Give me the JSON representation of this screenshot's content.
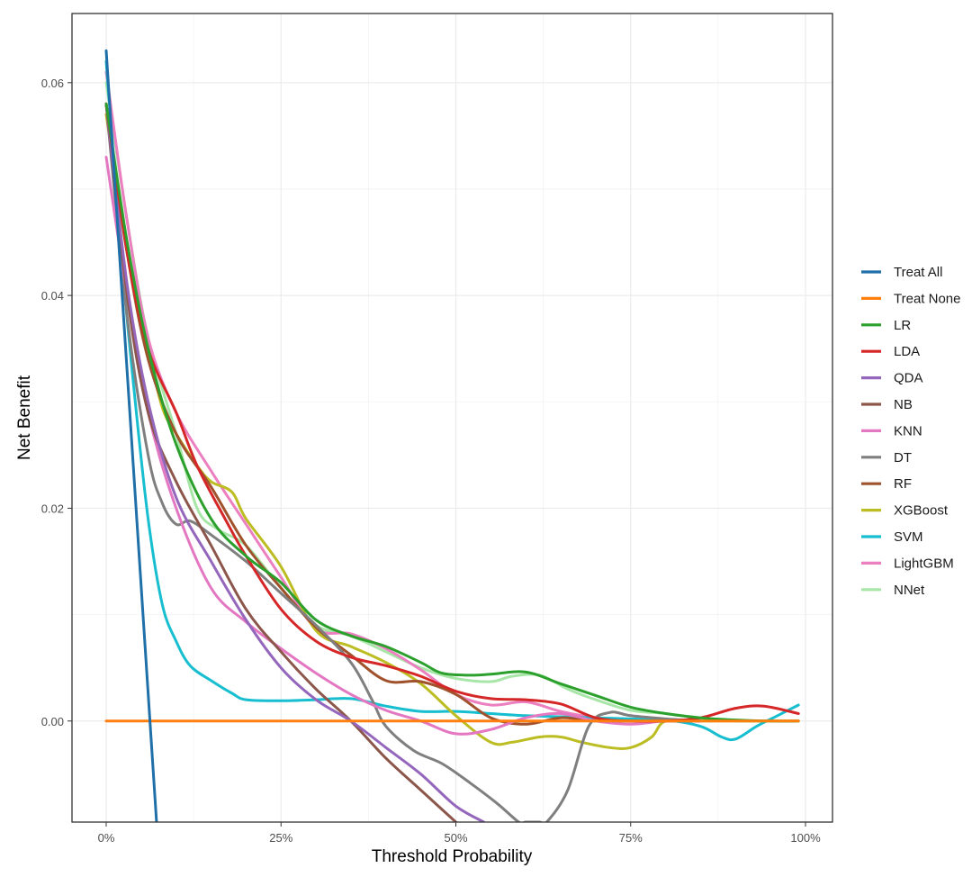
{
  "chart_data": {
    "type": "line",
    "title": "",
    "xlabel": "Threshold Probability",
    "ylabel": "Net Benefit",
    "xlim": [
      0,
      1
    ],
    "ylim": [
      -0.0095,
      0.0665
    ],
    "x_ticks": [
      0,
      0.25,
      0.5,
      0.75,
      1
    ],
    "x_tick_labels": [
      "0%",
      "25%",
      "50%",
      "75%",
      "100%"
    ],
    "y_ticks": [
      0,
      0.02,
      0.04,
      0.06
    ],
    "y_tick_labels": [
      "0.00",
      "0.02",
      "0.04",
      "0.06"
    ],
    "grid": true,
    "legend_position": "right",
    "series": [
      {
        "name": "Treat All",
        "color": "#1f6fa8",
        "x": [
          0,
          0.072
        ],
        "y": [
          0.063,
          -0.0095
        ]
      },
      {
        "name": "Treat None",
        "color": "#ff7f0e",
        "x": [
          0,
          0.99
        ],
        "y": [
          0,
          0
        ]
      },
      {
        "name": "LR",
        "color": "#2ca02c",
        "x": [
          0,
          0.03,
          0.06,
          0.1,
          0.15,
          0.2,
          0.25,
          0.3,
          0.35,
          0.4,
          0.45,
          0.48,
          0.52,
          0.55,
          0.6,
          0.65,
          0.7,
          0.75,
          0.8,
          0.85,
          0.9,
          0.95,
          0.99
        ],
        "y": [
          0.058,
          0.045,
          0.035,
          0.026,
          0.019,
          0.0155,
          0.013,
          0.0095,
          0.008,
          0.007,
          0.0055,
          0.0045,
          0.0043,
          0.0044,
          0.0046,
          0.0035,
          0.0024,
          0.0013,
          0.0007,
          0.0003,
          0.0001,
          0.0,
          0.0
        ]
      },
      {
        "name": "LDA",
        "color": "#d62728",
        "x": [
          0,
          0.03,
          0.06,
          0.1,
          0.13,
          0.17,
          0.2,
          0.25,
          0.3,
          0.35,
          0.4,
          0.45,
          0.5,
          0.55,
          0.6,
          0.65,
          0.7,
          0.75,
          0.8,
          0.85,
          0.9,
          0.94,
          0.99
        ],
        "y": [
          0.058,
          0.044,
          0.035,
          0.029,
          0.024,
          0.019,
          0.0155,
          0.0105,
          0.0075,
          0.006,
          0.0052,
          0.0042,
          0.0028,
          0.0021,
          0.002,
          0.0016,
          0.0003,
          0.0,
          0.0,
          0.0003,
          0.0012,
          0.0014,
          0.0007
        ]
      },
      {
        "name": "QDA",
        "color": "#9467bd",
        "x": [
          0,
          0.03,
          0.06,
          0.1,
          0.15,
          0.2,
          0.25,
          0.3,
          0.35,
          0.4,
          0.45,
          0.5,
          0.54
        ],
        "y": [
          0.058,
          0.041,
          0.03,
          0.021,
          0.015,
          0.0095,
          0.005,
          0.002,
          0.0,
          -0.0025,
          -0.005,
          -0.008,
          -0.0095
        ]
      },
      {
        "name": "NB",
        "color": "#8c564b",
        "x": [
          0,
          0.03,
          0.06,
          0.1,
          0.15,
          0.2,
          0.25,
          0.3,
          0.35,
          0.4,
          0.45,
          0.5
        ],
        "y": [
          0.058,
          0.04,
          0.029,
          0.0225,
          0.0165,
          0.0105,
          0.0065,
          0.003,
          0.0,
          -0.0035,
          -0.0065,
          -0.0095
        ]
      },
      {
        "name": "KNN",
        "color": "#e377c2",
        "x": [
          0,
          0.03,
          0.06,
          0.1,
          0.15,
          0.2,
          0.25,
          0.3,
          0.35,
          0.4,
          0.45,
          0.5,
          0.55,
          0.6,
          0.65,
          0.7,
          0.75,
          0.8,
          0.85
        ],
        "y": [
          0.053,
          0.04,
          0.029,
          0.02,
          0.0125,
          0.0093,
          0.0068,
          0.0045,
          0.0025,
          0.001,
          0.0,
          -0.0012,
          -0.0008,
          0.0003,
          0.0007,
          0.0,
          -0.0003,
          0.0,
          0.0
        ]
      },
      {
        "name": "DT",
        "color": "#7f7f7f",
        "x": [
          0,
          0.03,
          0.06,
          0.08,
          0.1,
          0.12,
          0.15,
          0.2,
          0.25,
          0.3,
          0.35,
          0.38,
          0.4,
          0.44,
          0.48,
          0.52,
          0.56,
          0.59,
          0.6,
          0.62,
          0.63,
          0.66,
          0.69,
          0.72,
          0.75,
          0.8,
          0.85
        ],
        "y": [
          0.058,
          0.038,
          0.025,
          0.0205,
          0.0185,
          0.0188,
          0.0175,
          0.015,
          0.012,
          0.009,
          0.0055,
          0.002,
          -0.0005,
          -0.0028,
          -0.004,
          -0.0058,
          -0.0078,
          -0.0095,
          -0.0095,
          -0.0095,
          -0.0095,
          -0.0065,
          -0.0005,
          0.0008,
          0.0005,
          0.0002,
          0.0
        ]
      },
      {
        "name": "RF",
        "color": "#a0522d",
        "x": [
          0,
          0.03,
          0.06,
          0.1,
          0.15,
          0.2,
          0.25,
          0.3,
          0.35,
          0.4,
          0.45,
          0.5,
          0.55,
          0.6,
          0.65,
          0.7,
          0.75,
          0.8,
          0.85
        ],
        "y": [
          0.058,
          0.044,
          0.034,
          0.027,
          0.022,
          0.0165,
          0.0125,
          0.0088,
          0.0062,
          0.0038,
          0.0037,
          0.0025,
          0.0003,
          -0.0003,
          0.0003,
          0.0,
          0.0,
          0.0,
          0.0
        ]
      },
      {
        "name": "XGBoost",
        "color": "#bcbd22",
        "x": [
          0,
          0.03,
          0.06,
          0.08,
          0.1,
          0.13,
          0.15,
          0.18,
          0.2,
          0.25,
          0.3,
          0.35,
          0.4,
          0.45,
          0.5,
          0.55,
          0.58,
          0.62,
          0.65,
          0.68,
          0.72,
          0.75,
          0.78,
          0.8,
          0.85,
          0.9,
          0.99
        ],
        "y": [
          0.057,
          0.044,
          0.035,
          0.0295,
          0.027,
          0.024,
          0.0225,
          0.0215,
          0.019,
          0.0145,
          0.0085,
          0.007,
          0.0055,
          0.0035,
          0.0005,
          -0.002,
          -0.002,
          -0.0015,
          -0.0015,
          -0.002,
          -0.0025,
          -0.0025,
          -0.0015,
          0.0,
          0.0,
          0.0,
          0.0
        ]
      },
      {
        "name": "SVM",
        "color": "#17becf",
        "x": [
          0,
          0.02,
          0.04,
          0.06,
          0.08,
          0.1,
          0.12,
          0.15,
          0.18,
          0.2,
          0.25,
          0.3,
          0.35,
          0.4,
          0.45,
          0.5,
          0.55,
          0.6,
          0.65,
          0.7,
          0.75,
          0.8,
          0.85,
          0.88,
          0.9,
          0.93,
          0.96,
          0.99
        ],
        "y": [
          0.062,
          0.045,
          0.031,
          0.019,
          0.011,
          0.0075,
          0.0052,
          0.0038,
          0.0026,
          0.002,
          0.0019,
          0.002,
          0.0021,
          0.0014,
          0.0009,
          0.0009,
          0.0007,
          0.0005,
          0.0004,
          0.0003,
          0.0002,
          0.0001,
          -0.0005,
          -0.0015,
          -0.0017,
          -0.0005,
          0.0005,
          0.0015
        ]
      },
      {
        "name": "LightGBM",
        "color": "#ec7fbf",
        "x": [
          0,
          0.03,
          0.06,
          0.1,
          0.15,
          0.2,
          0.25,
          0.3,
          0.35,
          0.4,
          0.45,
          0.5,
          0.55,
          0.6,
          0.65,
          0.7,
          0.75,
          0.8,
          0.85
        ],
        "y": [
          0.061,
          0.047,
          0.036,
          0.029,
          0.0235,
          0.0185,
          0.0135,
          0.0087,
          0.0082,
          0.0068,
          0.0048,
          0.0025,
          0.0015,
          0.0018,
          0.0009,
          0.0003,
          0.0,
          0.0,
          0.0
        ]
      },
      {
        "name": "NNet",
        "color": "#a8e6a8",
        "x": [
          0,
          0.03,
          0.06,
          0.1,
          0.13,
          0.16,
          0.2,
          0.25,
          0.3,
          0.35,
          0.4,
          0.45,
          0.5,
          0.55,
          0.58,
          0.62,
          0.66,
          0.7,
          0.75,
          0.8,
          0.85,
          0.9,
          0.99
        ],
        "y": [
          0.06,
          0.047,
          0.036,
          0.027,
          0.02,
          0.018,
          0.0165,
          0.0125,
          0.009,
          0.008,
          0.0065,
          0.005,
          0.004,
          0.0037,
          0.0042,
          0.0043,
          0.003,
          0.002,
          0.001,
          0.0007,
          0.0003,
          0.0,
          0.0
        ]
      }
    ]
  }
}
